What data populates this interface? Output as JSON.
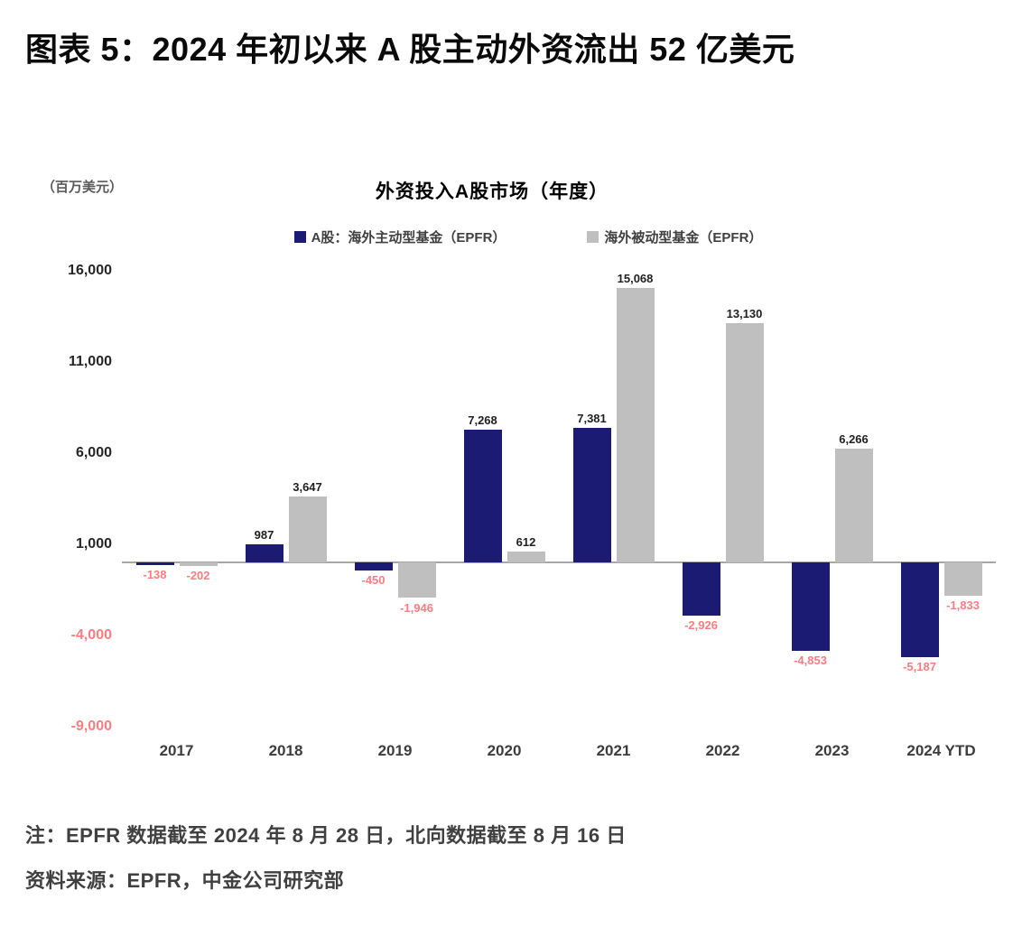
{
  "page": {
    "title": "图表 5：2024 年初以来 A 股主动外资流出 52 亿美元",
    "note_line1": "注：EPFR 数据截至 2024 年 8 月 28 日，北向数据截至 8 月 16 日",
    "note_line2": "资料来源：EPFR，中金公司研究部"
  },
  "chart_data": {
    "type": "bar",
    "title": "外资投入A股市场（年度）",
    "unit_label": "（百万美元）",
    "categories": [
      "2017",
      "2018",
      "2019",
      "2020",
      "2021",
      "2022",
      "2023",
      "2024 YTD"
    ],
    "series": [
      {
        "name": "A股：海外主动型基金（EPFR）",
        "color": "#1b1b73",
        "values": [
          -138,
          987,
          -450,
          7268,
          7381,
          -2926,
          -4853,
          -5187
        ]
      },
      {
        "name": "海外被动型基金（EPFR）",
        "color": "#bfbfbf",
        "values": [
          -202,
          3647,
          -1946,
          612,
          15068,
          13130,
          6266,
          -1833
        ]
      }
    ],
    "y_ticks": [
      16000,
      11000,
      6000,
      1000,
      -4000,
      -9000
    ],
    "ylim": [
      -9000,
      16000
    ],
    "grid": "off",
    "legend_position": "top-center",
    "positive_label_color": "#1f1f1f",
    "negative_label_color": "#ff7c80",
    "negative_tick_color": "#ff7c80",
    "axis_line_color": "#a6a6a6"
  }
}
